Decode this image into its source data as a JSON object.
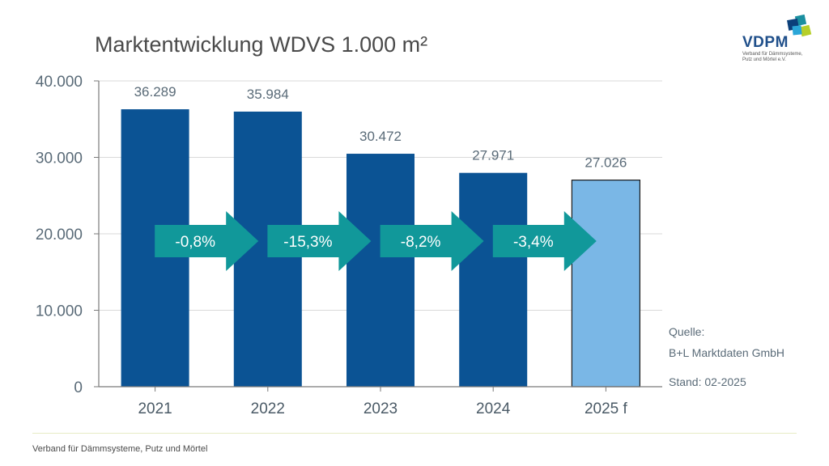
{
  "title": "Marktentwicklung WDVS 1.000 m²",
  "logo": {
    "name": "VDPM",
    "subtitle_line1": "Verband für Dämmsysteme,",
    "subtitle_line2": "Putz und Mörtel e.V."
  },
  "chart_data": {
    "type": "bar",
    "categories": [
      "2021",
      "2022",
      "2023",
      "2024",
      "2025 f"
    ],
    "values": [
      36289,
      35984,
      30472,
      27971,
      27026
    ],
    "value_labels": [
      "36.289",
      "35.984",
      "30.472",
      "27.971",
      "27.026"
    ],
    "ylim": [
      0,
      40000
    ],
    "yticks": [
      0,
      10000,
      20000,
      30000,
      40000
    ],
    "ytick_labels": [
      "0",
      "10.000",
      "20.000",
      "30.000",
      "40.000"
    ],
    "grid": true,
    "bar_colors": [
      "#0b5394",
      "#0b5394",
      "#0b5394",
      "#0b5394",
      "#7ab7e6"
    ],
    "changes": [
      {
        "from": "2021",
        "to": "2022",
        "label": "-0,8%"
      },
      {
        "from": "2022",
        "to": "2023",
        "label": "-15,3%"
      },
      {
        "from": "2023",
        "to": "2024",
        "label": "-8,2%"
      },
      {
        "from": "2024",
        "to": "2025 f",
        "label": "-3,4%"
      }
    ],
    "arrow_color": "#11989a"
  },
  "source": {
    "label": "Quelle:",
    "name": "B+L Marktdaten GmbH",
    "date": "Stand: 02-2025"
  },
  "footer": "Verband für Dämmsysteme, Putz und Mörtel"
}
